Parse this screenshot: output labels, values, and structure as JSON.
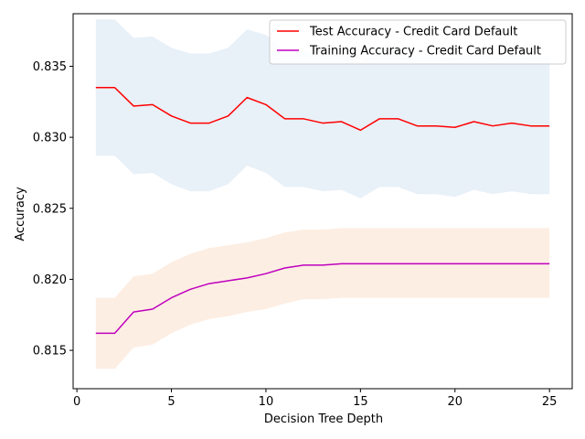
{
  "chart_data": {
    "type": "line",
    "title": "",
    "xlabel": "Decision Tree Depth",
    "ylabel": "Accuracy",
    "xlim": [
      -0.2,
      26.2
    ],
    "ylim": [
      0.8123,
      0.8387
    ],
    "xticks": [
      0,
      5,
      10,
      15,
      20,
      25
    ],
    "yticks": [
      0.815,
      0.82,
      0.825,
      0.83,
      0.835
    ],
    "ytick_labels": [
      "0.815",
      "0.820",
      "0.825",
      "0.830",
      "0.835"
    ],
    "grid": false,
    "legend_position": "top-right",
    "x": [
      1,
      2,
      3,
      4,
      5,
      6,
      7,
      8,
      9,
      10,
      11,
      12,
      13,
      14,
      15,
      16,
      17,
      18,
      19,
      20,
      21,
      22,
      23,
      24,
      25
    ],
    "series": [
      {
        "name": "Test Accuracy - Credit Card Default",
        "color": "#ff0000",
        "band_color": "#e8f0f8",
        "values": [
          0.8335,
          0.8335,
          0.8322,
          0.8323,
          0.8315,
          0.831,
          0.831,
          0.8315,
          0.8328,
          0.8323,
          0.8313,
          0.8313,
          0.831,
          0.8311,
          0.8305,
          0.8313,
          0.8313,
          0.8308,
          0.8308,
          0.8307,
          0.8311,
          0.8308,
          0.831,
          0.8308,
          0.8308
        ],
        "upper": [
          0.8383,
          0.8383,
          0.837,
          0.8371,
          0.8363,
          0.8359,
          0.8359,
          0.8363,
          0.8376,
          0.8372,
          0.8361,
          0.8361,
          0.8358,
          0.8359,
          0.8353,
          0.8361,
          0.8361,
          0.8357,
          0.8357,
          0.8356,
          0.8359,
          0.8357,
          0.8358,
          0.8357,
          0.8357
        ],
        "lower": [
          0.8287,
          0.8287,
          0.8274,
          0.8275,
          0.8267,
          0.8262,
          0.8262,
          0.8267,
          0.828,
          0.8275,
          0.8265,
          0.8265,
          0.8262,
          0.8263,
          0.8257,
          0.8265,
          0.8265,
          0.826,
          0.826,
          0.8258,
          0.8263,
          0.826,
          0.8262,
          0.826,
          0.826
        ]
      },
      {
        "name": "Training Accuracy - Credit Card Default",
        "color": "#bf00bf",
        "band_color": "#fdeee3",
        "values": [
          0.8162,
          0.8162,
          0.8177,
          0.8179,
          0.8187,
          0.8193,
          0.8197,
          0.8199,
          0.8201,
          0.8204,
          0.8208,
          0.821,
          0.821,
          0.8211,
          0.8211,
          0.8211,
          0.8211,
          0.8211,
          0.8211,
          0.8211,
          0.8211,
          0.8211,
          0.8211,
          0.8211,
          0.8211
        ],
        "upper": [
          0.8187,
          0.8187,
          0.8202,
          0.8204,
          0.8212,
          0.8218,
          0.8222,
          0.8224,
          0.8226,
          0.8229,
          0.8233,
          0.8235,
          0.8235,
          0.8236,
          0.8236,
          0.8236,
          0.8236,
          0.8236,
          0.8236,
          0.8236,
          0.8236,
          0.8236,
          0.8236,
          0.8236,
          0.8236
        ],
        "lower": [
          0.8137,
          0.8137,
          0.8152,
          0.8154,
          0.8162,
          0.8168,
          0.8172,
          0.8174,
          0.8177,
          0.8179,
          0.8183,
          0.8186,
          0.8186,
          0.8187,
          0.8187,
          0.8187,
          0.8187,
          0.8187,
          0.8187,
          0.8187,
          0.8187,
          0.8187,
          0.8187,
          0.8187,
          0.8187
        ]
      }
    ]
  }
}
